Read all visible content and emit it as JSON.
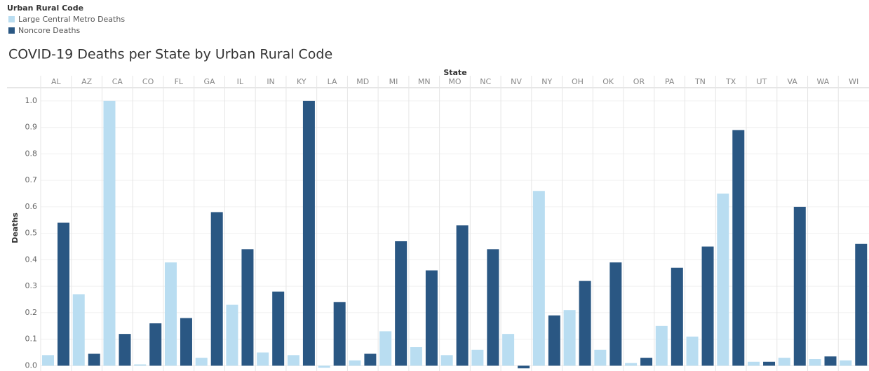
{
  "chart_data": {
    "type": "bar",
    "title": "COVID-19 Deaths per State by Urban Rural Code",
    "legend_title": "Urban Rural Code",
    "x_label": "State",
    "y_label": "Deaths",
    "categories": [
      "AL",
      "AZ",
      "CA",
      "CO",
      "FL",
      "GA",
      "IL",
      "IN",
      "KY",
      "LA",
      "MD",
      "MI",
      "MN",
      "MO",
      "NC",
      "NV",
      "NY",
      "OH",
      "OK",
      "OR",
      "PA",
      "TN",
      "TX",
      "UT",
      "VA",
      "WA",
      "WI"
    ],
    "series": [
      {
        "name": "Large Central Metro Deaths",
        "color": "#b9ddf1",
        "values": [
          0.04,
          0.27,
          1.0,
          0.005,
          0.39,
          0.03,
          0.23,
          0.05,
          0.04,
          -0.008,
          0.02,
          0.13,
          0.07,
          0.04,
          0.06,
          0.12,
          0.66,
          0.21,
          0.06,
          0.01,
          0.15,
          0.11,
          0.65,
          0.015,
          0.03,
          0.025,
          0.02
        ]
      },
      {
        "name": "Noncore Deaths",
        "color": "#2a5783",
        "values": [
          0.54,
          0.045,
          0.12,
          0.16,
          0.18,
          0.58,
          0.44,
          0.28,
          1.0,
          0.24,
          0.045,
          0.47,
          0.36,
          0.53,
          0.44,
          -0.01,
          0.19,
          0.32,
          0.39,
          0.03,
          0.37,
          0.45,
          0.89,
          0.015,
          0.6,
          0.035,
          0.46
        ]
      }
    ],
    "ylim": [
      -0.02,
      1.05
    ],
    "yticks": [
      {
        "value": 0,
        "label": "0.0"
      },
      0.1,
      0.2,
      0.3,
      0.4,
      0.5,
      0.6,
      0.7,
      0.8,
      0.9,
      {
        "value": 1,
        "label": "1.0"
      }
    ],
    "grid": true
  }
}
